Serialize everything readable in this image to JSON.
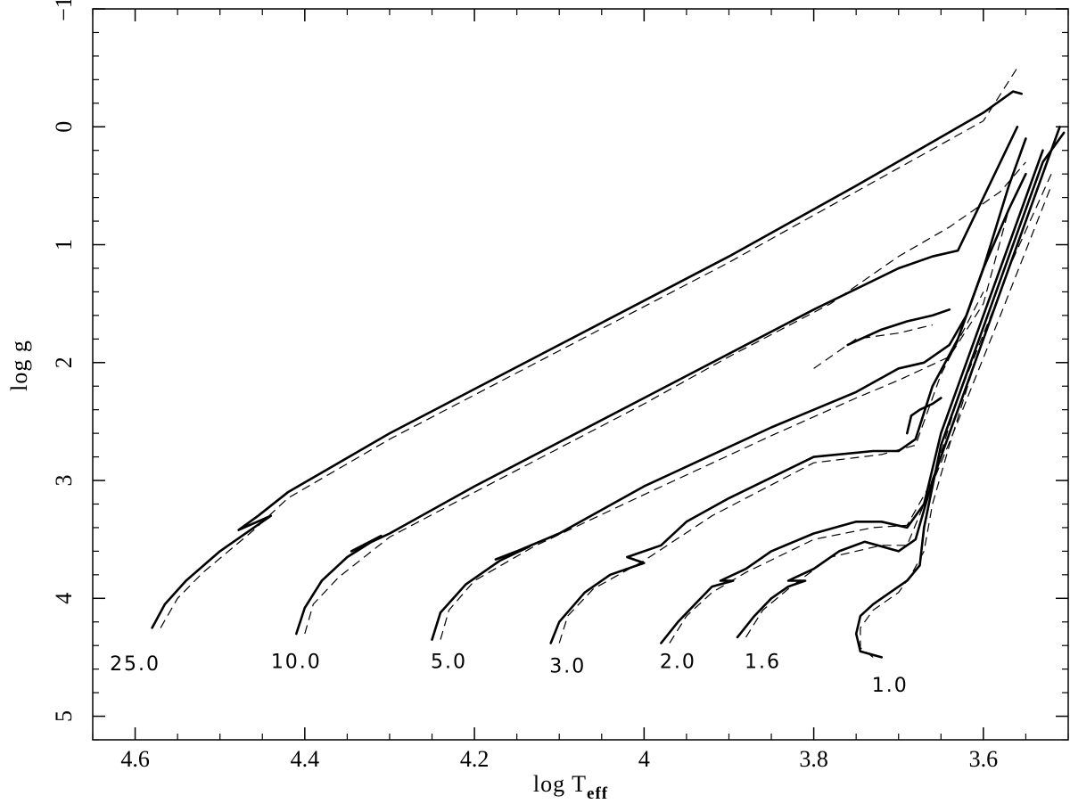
{
  "chart_data": {
    "type": "line",
    "xlabel": "log T",
    "xlabel_subscript": "eff",
    "ylabel": "log g",
    "xlim": [
      4.65,
      3.5
    ],
    "ylim": [
      5.2,
      -1.0
    ],
    "x_ticks": [
      4.6,
      4.4,
      4.2,
      4.0,
      3.8,
      3.6
    ],
    "x_tick_labels": [
      "4.6",
      "4.4",
      "4.2",
      "4",
      "3.8",
      "3.6"
    ],
    "y_ticks": [
      -1,
      0,
      1,
      2,
      3,
      4,
      5
    ],
    "y_tick_labels": [
      "−1",
      "0",
      "1",
      "2",
      "3",
      "4",
      "5"
    ],
    "grid": false,
    "series": [
      {
        "label": "25.0",
        "label_pos": [
          4.6,
          4.55
        ],
        "solid": [
          [
            4.58,
            4.25
          ],
          [
            4.565,
            4.05
          ],
          [
            4.54,
            3.85
          ],
          [
            4.5,
            3.6
          ],
          [
            4.44,
            3.3
          ],
          [
            4.478,
            3.42
          ],
          [
            4.455,
            3.3
          ],
          [
            4.42,
            3.1
          ],
          [
            4.3,
            2.6
          ],
          [
            4.1,
            1.85
          ],
          [
            3.9,
            1.1
          ],
          [
            3.75,
            0.5
          ],
          [
            3.6,
            -0.12
          ],
          [
            3.565,
            -0.3
          ],
          [
            3.555,
            -0.28
          ]
        ],
        "dashed": [
          [
            4.57,
            4.25
          ],
          [
            4.55,
            4.0
          ],
          [
            4.52,
            3.78
          ],
          [
            4.46,
            3.42
          ],
          [
            4.42,
            3.15
          ],
          [
            4.3,
            2.65
          ],
          [
            4.1,
            1.9
          ],
          [
            3.9,
            1.15
          ],
          [
            3.75,
            0.55
          ],
          [
            3.6,
            -0.05
          ],
          [
            3.56,
            -0.5
          ]
        ]
      },
      {
        "label": "10.0",
        "label_pos": [
          4.41,
          4.53
        ],
        "solid": [
          [
            4.41,
            4.3
          ],
          [
            4.4,
            4.08
          ],
          [
            4.38,
            3.85
          ],
          [
            4.35,
            3.65
          ],
          [
            4.31,
            3.47
          ],
          [
            4.345,
            3.6
          ],
          [
            4.33,
            3.55
          ],
          [
            4.3,
            3.45
          ],
          [
            4.2,
            3.05
          ],
          [
            4.0,
            2.3
          ],
          [
            3.8,
            1.55
          ],
          [
            3.7,
            1.2
          ],
          [
            3.66,
            1.1
          ],
          [
            3.63,
            1.05
          ],
          [
            3.6,
            0.6
          ],
          [
            3.58,
            0.3
          ],
          [
            3.56,
            0.0
          ]
        ],
        "dashed": [
          [
            4.4,
            4.3
          ],
          [
            4.39,
            4.05
          ],
          [
            4.36,
            3.82
          ],
          [
            4.3,
            3.48
          ],
          [
            4.2,
            3.1
          ],
          [
            4.0,
            2.35
          ],
          [
            3.9,
            1.95
          ],
          [
            3.78,
            1.5
          ],
          [
            3.7,
            1.1
          ],
          [
            3.64,
            0.85
          ],
          [
            3.58,
            0.55
          ],
          [
            3.55,
            0.3
          ]
        ]
      },
      {
        "label": "5.0",
        "label_pos": [
          4.23,
          4.53
        ],
        "solid": [
          [
            4.25,
            4.35
          ],
          [
            4.24,
            4.12
          ],
          [
            4.21,
            3.88
          ],
          [
            4.17,
            3.68
          ],
          [
            4.135,
            3.56
          ],
          [
            4.175,
            3.67
          ],
          [
            4.15,
            3.6
          ],
          [
            4.1,
            3.45
          ],
          [
            4.0,
            3.05
          ],
          [
            3.85,
            2.55
          ],
          [
            3.75,
            2.25
          ],
          [
            3.7,
            2.05
          ],
          [
            3.67,
            2.0
          ],
          [
            3.64,
            1.85
          ],
          [
            3.62,
            1.6
          ],
          [
            3.6,
            1.2
          ],
          [
            3.57,
            0.5
          ],
          [
            3.55,
            0.1
          ]
        ],
        "dashed": [
          [
            4.24,
            4.35
          ],
          [
            4.23,
            4.1
          ],
          [
            4.2,
            3.85
          ],
          [
            4.13,
            3.56
          ],
          [
            4.0,
            3.12
          ],
          [
            3.85,
            2.62
          ],
          [
            3.75,
            2.3
          ],
          [
            3.7,
            2.15
          ],
          [
            3.64,
            1.95
          ],
          [
            3.6,
            1.5
          ],
          [
            3.57,
            0.7
          ]
        ]
      },
      {
        "label": "3.0",
        "label_pos": [
          4.09,
          4.57
        ],
        "solid": [
          [
            4.11,
            4.38
          ],
          [
            4.1,
            4.2
          ],
          [
            4.07,
            3.95
          ],
          [
            4.04,
            3.8
          ],
          [
            4.0,
            3.7
          ],
          [
            4.02,
            3.65
          ],
          [
            3.98,
            3.55
          ],
          [
            3.95,
            3.35
          ],
          [
            3.9,
            3.15
          ],
          [
            3.8,
            2.8
          ],
          [
            3.73,
            2.75
          ],
          [
            3.7,
            2.75
          ],
          [
            3.68,
            2.65
          ],
          [
            3.66,
            2.2
          ],
          [
            3.63,
            1.8
          ],
          [
            3.6,
            1.2
          ],
          [
            3.57,
            0.7
          ],
          [
            3.55,
            0.4
          ]
        ],
        "dashed": [
          [
            4.1,
            4.38
          ],
          [
            4.09,
            4.15
          ],
          [
            4.06,
            3.92
          ],
          [
            4.0,
            3.68
          ],
          [
            3.92,
            3.3
          ],
          [
            3.8,
            2.85
          ],
          [
            3.72,
            2.78
          ],
          [
            3.68,
            2.7
          ],
          [
            3.65,
            2.1
          ],
          [
            3.6,
            1.4
          ]
        ]
      },
      {
        "label": "2.0",
        "label_pos": [
          3.96,
          4.53
        ],
        "solid": [
          [
            3.98,
            4.38
          ],
          [
            3.96,
            4.2
          ],
          [
            3.94,
            4.05
          ],
          [
            3.92,
            3.9
          ],
          [
            3.895,
            3.85
          ],
          [
            3.91,
            3.85
          ],
          [
            3.88,
            3.75
          ],
          [
            3.85,
            3.6
          ],
          [
            3.8,
            3.45
          ],
          [
            3.75,
            3.35
          ],
          [
            3.72,
            3.35
          ],
          [
            3.69,
            3.4
          ],
          [
            3.67,
            3.2
          ],
          [
            3.65,
            2.6
          ],
          [
            3.62,
            2.0
          ],
          [
            3.58,
            1.2
          ],
          [
            3.53,
            0.2
          ]
        ],
        "dashed": [
          [
            3.97,
            4.38
          ],
          [
            3.95,
            4.15
          ],
          [
            3.92,
            3.95
          ],
          [
            3.88,
            3.78
          ],
          [
            3.8,
            3.5
          ],
          [
            3.73,
            3.4
          ],
          [
            3.69,
            3.38
          ],
          [
            3.66,
            3.0
          ],
          [
            3.63,
            2.3
          ],
          [
            3.58,
            1.4
          ]
        ]
      },
      {
        "label": "1.6",
        "label_pos": [
          3.86,
          4.53
        ],
        "solid": [
          [
            3.89,
            4.33
          ],
          [
            3.87,
            4.15
          ],
          [
            3.85,
            4.0
          ],
          [
            3.83,
            3.9
          ],
          [
            3.81,
            3.85
          ],
          [
            3.83,
            3.85
          ],
          [
            3.8,
            3.75
          ],
          [
            3.77,
            3.6
          ],
          [
            3.74,
            3.52
          ],
          [
            3.7,
            3.6
          ],
          [
            3.68,
            3.5
          ],
          [
            3.66,
            3.0
          ],
          [
            3.64,
            2.6
          ],
          [
            3.6,
            1.8
          ],
          [
            3.56,
            1.0
          ],
          [
            3.51,
            0.0
          ]
        ],
        "dashed": [
          [
            3.88,
            4.33
          ],
          [
            3.86,
            4.1
          ],
          [
            3.83,
            3.92
          ],
          [
            3.78,
            3.65
          ],
          [
            3.72,
            3.55
          ],
          [
            3.69,
            3.55
          ],
          [
            3.67,
            3.2
          ],
          [
            3.63,
            2.5
          ],
          [
            3.58,
            1.6
          ],
          [
            3.52,
            0.5
          ]
        ]
      },
      {
        "label": "1.0",
        "label_pos": [
          3.71,
          4.73
        ],
        "solid": [
          [
            3.72,
            4.5
          ],
          [
            3.745,
            4.45
          ],
          [
            3.75,
            4.3
          ],
          [
            3.745,
            4.15
          ],
          [
            3.73,
            4.05
          ],
          [
            3.71,
            3.95
          ],
          [
            3.69,
            3.85
          ],
          [
            3.675,
            3.72
          ],
          [
            3.67,
            3.4
          ],
          [
            3.66,
            3.05
          ],
          [
            3.65,
            2.7
          ],
          [
            3.63,
            2.3
          ],
          [
            3.6,
            1.7
          ],
          [
            3.56,
            0.9
          ],
          [
            3.53,
            0.3
          ],
          [
            3.505,
            0.05
          ]
        ],
        "dashed": [
          [
            3.73,
            4.5
          ],
          [
            3.745,
            4.42
          ],
          [
            3.745,
            4.25
          ],
          [
            3.73,
            4.1
          ],
          [
            3.7,
            3.95
          ],
          [
            3.685,
            3.8
          ],
          [
            3.67,
            3.6
          ],
          [
            3.66,
            3.2
          ],
          [
            3.64,
            2.7
          ],
          [
            3.61,
            2.0
          ],
          [
            3.57,
            1.2
          ],
          [
            3.52,
            0.4
          ]
        ]
      },
      {
        "label": "",
        "label_pos": [
          0,
          0
        ],
        "solid": [
          [
            3.76,
            1.85
          ],
          [
            3.72,
            1.72
          ],
          [
            3.69,
            1.65
          ],
          [
            3.66,
            1.6
          ],
          [
            3.64,
            1.55
          ]
        ],
        "dashed": [
          [
            3.8,
            2.05
          ],
          [
            3.75,
            1.8
          ],
          [
            3.7,
            1.75
          ],
          [
            3.66,
            1.68
          ]
        ]
      },
      {
        "label": "",
        "label_pos": [
          0,
          0
        ],
        "solid": [
          [
            3.69,
            2.6
          ],
          [
            3.685,
            2.45
          ],
          [
            3.675,
            2.4
          ],
          [
            3.66,
            2.35
          ],
          [
            3.65,
            2.3
          ]
        ],
        "dashed": []
      }
    ]
  }
}
